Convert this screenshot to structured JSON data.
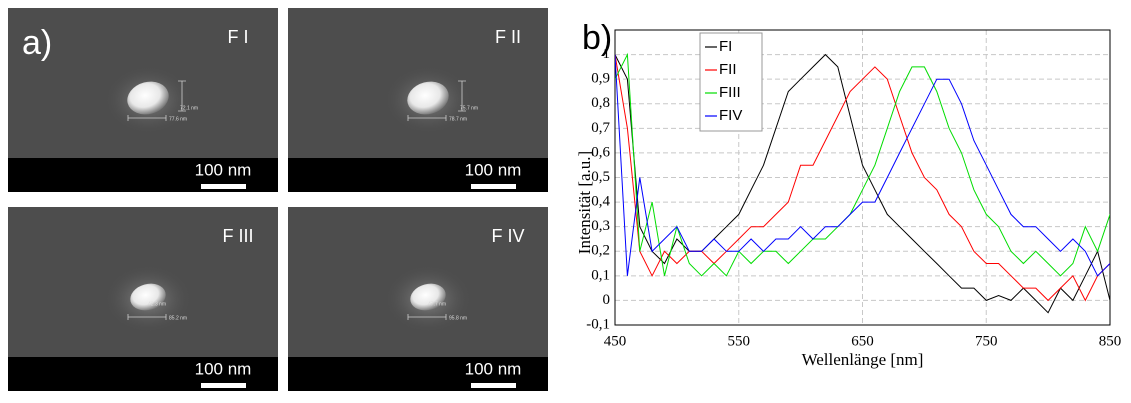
{
  "panel_a": {
    "label": "a)",
    "scale_bar": "100 nm",
    "images": [
      {
        "label": "F I",
        "height": "72.1 nm",
        "width": "77.6 nm"
      },
      {
        "label": "F II",
        "height": "75.7 nm",
        "width": "78.7 nm"
      },
      {
        "label": "F III",
        "height": "42.3 nm",
        "width": "85.2 nm"
      },
      {
        "label": "F IV",
        "height": "47.7 nm",
        "width": "95.8 nm"
      }
    ]
  },
  "chart_data": {
    "type": "line",
    "panel_label": "b)",
    "x_label": "Wellenlänge [nm]",
    "y_label": "Intensität [a.u.]",
    "x": [
      450,
      460,
      470,
      480,
      490,
      500,
      510,
      520,
      530,
      540,
      550,
      560,
      570,
      580,
      590,
      600,
      610,
      620,
      630,
      640,
      650,
      660,
      670,
      680,
      690,
      700,
      710,
      720,
      730,
      740,
      750,
      760,
      770,
      780,
      790,
      800,
      810,
      820,
      830,
      840,
      850
    ],
    "series": [
      {
        "name": "FI",
        "color": "#000000",
        "values": [
          1.0,
          0.9,
          0.3,
          0.2,
          0.15,
          0.25,
          0.2,
          0.2,
          0.25,
          0.3,
          0.35,
          0.45,
          0.55,
          0.7,
          0.85,
          0.9,
          0.95,
          1.0,
          0.95,
          0.75,
          0.55,
          0.45,
          0.35,
          0.3,
          0.25,
          0.2,
          0.15,
          0.1,
          0.05,
          0.05,
          0.0,
          0.02,
          0.0,
          0.05,
          0.0,
          -0.05,
          0.05,
          0.0,
          0.1,
          0.2,
          0.0
        ]
      },
      {
        "name": "FII",
        "color": "#ff0000",
        "values": [
          1.0,
          0.7,
          0.2,
          0.1,
          0.2,
          0.15,
          0.2,
          0.2,
          0.15,
          0.2,
          0.25,
          0.3,
          0.3,
          0.35,
          0.4,
          0.55,
          0.55,
          0.65,
          0.75,
          0.85,
          0.9,
          0.95,
          0.9,
          0.75,
          0.6,
          0.5,
          0.45,
          0.35,
          0.3,
          0.2,
          0.15,
          0.15,
          0.1,
          0.05,
          0.05,
          0.0,
          0.05,
          0.1,
          0.0,
          0.1,
          0.15
        ]
      },
      {
        "name": "FIII",
        "color": "#00dd00",
        "values": [
          0.9,
          1.0,
          0.2,
          0.4,
          0.1,
          0.3,
          0.15,
          0.1,
          0.15,
          0.1,
          0.2,
          0.15,
          0.2,
          0.2,
          0.15,
          0.2,
          0.25,
          0.25,
          0.3,
          0.35,
          0.45,
          0.55,
          0.7,
          0.85,
          0.95,
          0.95,
          0.85,
          0.7,
          0.6,
          0.45,
          0.35,
          0.3,
          0.2,
          0.15,
          0.2,
          0.15,
          0.1,
          0.15,
          0.3,
          0.2,
          0.35
        ]
      },
      {
        "name": "FIV",
        "color": "#0000ff",
        "values": [
          1.0,
          0.1,
          0.5,
          0.2,
          0.25,
          0.3,
          0.2,
          0.2,
          0.25,
          0.2,
          0.2,
          0.25,
          0.2,
          0.25,
          0.25,
          0.3,
          0.25,
          0.3,
          0.3,
          0.35,
          0.4,
          0.4,
          0.5,
          0.6,
          0.7,
          0.8,
          0.9,
          0.9,
          0.8,
          0.65,
          0.55,
          0.45,
          0.35,
          0.3,
          0.3,
          0.25,
          0.2,
          0.25,
          0.2,
          0.1,
          0.15
        ]
      }
    ],
    "xlim": [
      450,
      850
    ],
    "xticks": [
      450,
      550,
      650,
      750,
      850
    ],
    "ylim": [
      -0.1,
      1.1
    ],
    "yticks": [
      {
        "value": -0.1,
        "label": "-0,1"
      },
      0,
      {
        "value": 0.1,
        "label": "0,1"
      },
      {
        "value": 0.2,
        "label": "0,2"
      },
      {
        "value": 0.3,
        "label": "0,3"
      },
      {
        "value": 0.4,
        "label": "0,4"
      },
      {
        "value": 0.5,
        "label": "0,5"
      },
      {
        "value": 0.6,
        "label": "0,6"
      },
      {
        "value": 0.7,
        "label": "0,7"
      },
      {
        "value": 0.8,
        "label": "0,8"
      },
      {
        "value": 0.9,
        "label": "0,9"
      },
      1
    ],
    "grid": true,
    "legend": "top-left"
  }
}
